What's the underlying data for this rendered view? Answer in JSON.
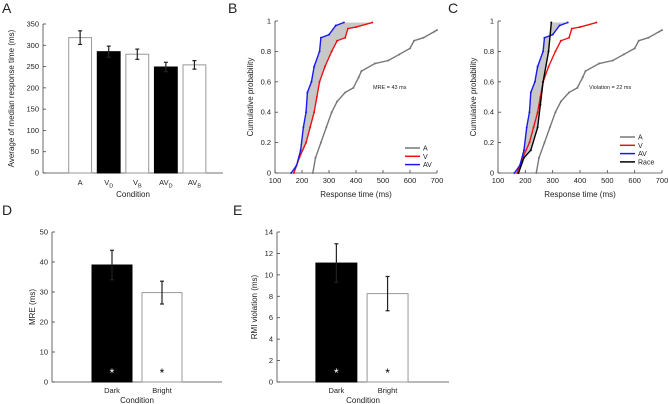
{
  "chart_data": [
    {
      "panel": "A",
      "type": "bar",
      "ylabel": "Average of median response time (ms)",
      "xlabel": "Condition",
      "ylim": [
        0,
        350
      ],
      "yticks": [
        0,
        50,
        100,
        150,
        200,
        250,
        300,
        350
      ],
      "categories": [
        {
          "main": "A",
          "sub": ""
        },
        {
          "main": "V",
          "sub": "D"
        },
        {
          "main": "V",
          "sub": "B"
        },
        {
          "main": "AV",
          "sub": "D"
        },
        {
          "main": "AV",
          "sub": "B"
        }
      ],
      "values": [
        318,
        285,
        279,
        249,
        254
      ],
      "errors": [
        16,
        13,
        12,
        11,
        10
      ],
      "fills": [
        "#ffffff",
        "#000000",
        "#ffffff",
        "#000000",
        "#ffffff"
      ]
    },
    {
      "panel": "B",
      "type": "line",
      "xlabel": "Response time (ms)",
      "ylabel": "Cumulative probability",
      "xlim": [
        100,
        700
      ],
      "ylim": [
        0,
        1
      ],
      "xticks": [
        100,
        200,
        300,
        400,
        500,
        600,
        700
      ],
      "yticks": [
        0,
        0.2,
        0.4,
        0.6,
        0.8,
        1
      ],
      "annotation": "MRE = 43 ms",
      "shade_between": [
        "AV",
        "V"
      ],
      "legend_position": "bottom-right",
      "series": [
        {
          "name": "A",
          "color": "#777777",
          "points": [
            [
              240,
              0
            ],
            [
              250,
              0.1
            ],
            [
              270,
              0.2
            ],
            [
              290,
              0.3
            ],
            [
              310,
              0.4
            ],
            [
              330,
              0.47
            ],
            [
              360,
              0.53
            ],
            [
              390,
              0.56
            ],
            [
              410,
              0.63
            ],
            [
              420,
              0.67
            ],
            [
              470,
              0.72
            ],
            [
              520,
              0.74
            ],
            [
              560,
              0.78
            ],
            [
              600,
              0.82
            ],
            [
              615,
              0.87
            ],
            [
              650,
              0.89
            ],
            [
              690,
              0.93
            ],
            [
              700,
              0.94
            ]
          ]
        },
        {
          "name": "V",
          "color": "#ee1111",
          "points": [
            [
              170,
              0
            ],
            [
              190,
              0.1
            ],
            [
              215,
              0.2
            ],
            [
              230,
              0.3
            ],
            [
              245,
              0.4
            ],
            [
              255,
              0.5
            ],
            [
              265,
              0.6
            ],
            [
              285,
              0.7
            ],
            [
              310,
              0.8
            ],
            [
              330,
              0.87
            ],
            [
              360,
              0.89
            ],
            [
              370,
              0.95
            ],
            [
              400,
              0.96
            ],
            [
              460,
              0.99
            ]
          ]
        },
        {
          "name": "AV",
          "color": "#1a1aee",
          "points": [
            [
              160,
              0
            ],
            [
              180,
              0.05
            ],
            [
              195,
              0.15
            ],
            [
              205,
              0.3
            ],
            [
              215,
              0.4
            ],
            [
              220,
              0.53
            ],
            [
              235,
              0.6
            ],
            [
              245,
              0.7
            ],
            [
              265,
              0.8
            ],
            [
              270,
              0.89
            ],
            [
              300,
              0.91
            ],
            [
              325,
              0.97
            ],
            [
              355,
              0.99
            ]
          ]
        }
      ]
    },
    {
      "panel": "C",
      "type": "line",
      "xlabel": "Response time (ms)",
      "ylabel": "Cumulative probability",
      "xlim": [
        100,
        700
      ],
      "ylim": [
        0,
        1
      ],
      "xticks": [
        100,
        200,
        300,
        400,
        500,
        600,
        700
      ],
      "yticks": [
        0,
        0.2,
        0.4,
        0.6,
        0.8,
        1
      ],
      "annotation": "Violation = 22 ms",
      "shade_between": [
        "AV",
        "Race"
      ],
      "legend_position": "bottom-right",
      "series": [
        {
          "name": "A",
          "color": "#777777",
          "points": [
            [
              240,
              0
            ],
            [
              250,
              0.1
            ],
            [
              270,
              0.2
            ],
            [
              290,
              0.3
            ],
            [
              310,
              0.4
            ],
            [
              330,
              0.47
            ],
            [
              360,
              0.53
            ],
            [
              390,
              0.56
            ],
            [
              410,
              0.63
            ],
            [
              420,
              0.67
            ],
            [
              470,
              0.72
            ],
            [
              520,
              0.74
            ],
            [
              560,
              0.78
            ],
            [
              600,
              0.82
            ],
            [
              615,
              0.87
            ],
            [
              650,
              0.89
            ],
            [
              690,
              0.93
            ],
            [
              700,
              0.94
            ]
          ]
        },
        {
          "name": "V",
          "color": "#ee1111",
          "points": [
            [
              170,
              0
            ],
            [
              190,
              0.1
            ],
            [
              215,
              0.2
            ],
            [
              230,
              0.3
            ],
            [
              245,
              0.4
            ],
            [
              255,
              0.5
            ],
            [
              265,
              0.6
            ],
            [
              285,
              0.7
            ],
            [
              310,
              0.8
            ],
            [
              330,
              0.87
            ],
            [
              360,
              0.89
            ],
            [
              370,
              0.95
            ],
            [
              400,
              0.96
            ],
            [
              460,
              0.99
            ]
          ]
        },
        {
          "name": "AV",
          "color": "#1a1aee",
          "points": [
            [
              160,
              0
            ],
            [
              180,
              0.05
            ],
            [
              195,
              0.15
            ],
            [
              205,
              0.3
            ],
            [
              215,
              0.4
            ],
            [
              220,
              0.53
            ],
            [
              235,
              0.6
            ],
            [
              245,
              0.7
            ],
            [
              265,
              0.8
            ],
            [
              270,
              0.89
            ],
            [
              300,
              0.91
            ],
            [
              325,
              0.97
            ],
            [
              355,
              0.99
            ]
          ]
        },
        {
          "name": "Race",
          "color": "#000000",
          "points": [
            [
              175,
              0
            ],
            [
              195,
              0.1
            ],
            [
              220,
              0.15
            ],
            [
              245,
              0.3
            ],
            [
              255,
              0.45
            ],
            [
              265,
              0.6
            ],
            [
              285,
              0.8
            ],
            [
              295,
              0.99
            ]
          ]
        }
      ]
    },
    {
      "panel": "D",
      "type": "bar",
      "ylabel": "MRE (ms)",
      "xlabel": "Condition",
      "ylim": [
        0,
        50
      ],
      "yticks": [
        0,
        10,
        20,
        30,
        40,
        50
      ],
      "categories": [
        {
          "main": "Dark",
          "sub": ""
        },
        {
          "main": "Bright",
          "sub": ""
        }
      ],
      "values": [
        39,
        29.8
      ],
      "errors": [
        4.9,
        3.8
      ],
      "fills": [
        "#000000",
        "#ffffff"
      ],
      "markers": [
        "*",
        "*"
      ]
    },
    {
      "panel": "E",
      "type": "bar",
      "ylabel": "RMI violation (ms)",
      "xlabel": "Condition",
      "ylim": [
        0,
        14
      ],
      "yticks": [
        0,
        2,
        4,
        6,
        8,
        10,
        12,
        14
      ],
      "categories": [
        {
          "main": "Dark",
          "sub": ""
        },
        {
          "main": "Bright",
          "sub": ""
        }
      ],
      "values": [
        11.1,
        8.25
      ],
      "errors": [
        1.8,
        1.6
      ],
      "fills": [
        "#000000",
        "#ffffff"
      ],
      "markers": [
        "*",
        "*"
      ]
    }
  ]
}
